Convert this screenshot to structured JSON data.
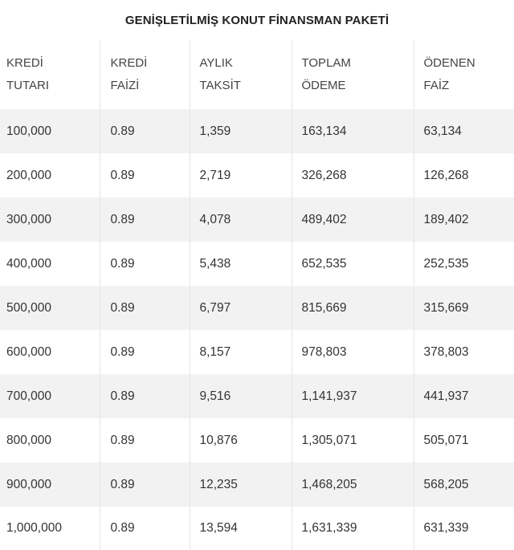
{
  "title": "GENİŞLETİLMİŞ KONUT FİNANSMAN PAKETİ",
  "headers": [
    [
      "KREDİ",
      "TUTARI"
    ],
    [
      "KREDİ",
      "FAİZİ"
    ],
    [
      "AYLIK",
      "TAKSİT"
    ],
    [
      "TOPLAM",
      "ÖDEME"
    ],
    [
      "ÖDENEN",
      "FAİZ"
    ]
  ],
  "rows": [
    [
      "100,000",
      "0.89",
      "1,359",
      "163,134",
      "63,134"
    ],
    [
      "200,000",
      "0.89",
      "2,719",
      "326,268",
      "126,268"
    ],
    [
      "300,000",
      "0.89",
      "4,078",
      "489,402",
      "189,402"
    ],
    [
      "400,000",
      "0.89",
      "5,438",
      "652,535",
      "252,535"
    ],
    [
      "500,000",
      "0.89",
      "6,797",
      "815,669",
      "315,669"
    ],
    [
      "600,000",
      "0.89",
      "8,157",
      "978,803",
      "378,803"
    ],
    [
      "700,000",
      "0.89",
      "9,516",
      "1,141,937",
      "441,937"
    ],
    [
      "800,000",
      "0.89",
      "10,876",
      "1,305,071",
      "505,071"
    ],
    [
      "900,000",
      "0.89",
      "12,235",
      "1,468,205",
      "568,205"
    ],
    [
      "1,000,000",
      "0.89",
      "13,594",
      "1,631,339",
      "631,339"
    ]
  ]
}
